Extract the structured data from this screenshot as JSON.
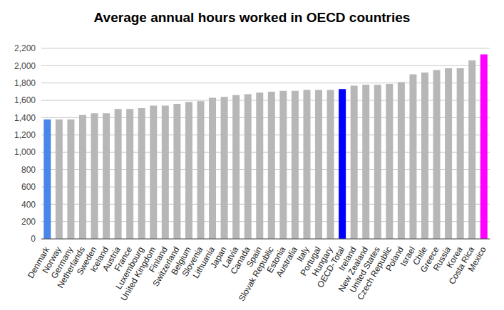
{
  "chart_data": {
    "type": "bar",
    "title": "Average annual hours worked in OECD countries",
    "categories": [
      "Denmark",
      "Norway",
      "Germany",
      "Netherlands",
      "Sweden",
      "Iceland",
      "Austria",
      "France",
      "Luxembourg",
      "United Kingdom",
      "Finland",
      "Switzerland",
      "Belgium",
      "Slovenia",
      "Lithuania",
      "Japan",
      "Latvia",
      "Canada",
      "Spain",
      "Slovak Republic",
      "Estonia",
      "Australia",
      "Italy",
      "Portugal",
      "Hungary",
      "OECD-Total",
      "Ireland",
      "New Zealand",
      "United States",
      "Czech Republic",
      "Poland",
      "Israel",
      "Chile",
      "Greece",
      "Russia",
      "Korea",
      "Costa Rica",
      "Mexico"
    ],
    "values": [
      1380,
      1380,
      1380,
      1430,
      1450,
      1450,
      1500,
      1500,
      1510,
      1540,
      1540,
      1560,
      1580,
      1590,
      1630,
      1640,
      1660,
      1670,
      1690,
      1700,
      1710,
      1710,
      1720,
      1720,
      1720,
      1730,
      1770,
      1780,
      1780,
      1790,
      1810,
      1900,
      1920,
      1950,
      1970,
      1970,
      2060,
      2130
    ],
    "colors": [
      "#4a86e8",
      "#b7b7b7",
      "#b7b7b7",
      "#b7b7b7",
      "#b7b7b7",
      "#b7b7b7",
      "#b7b7b7",
      "#b7b7b7",
      "#b7b7b7",
      "#b7b7b7",
      "#b7b7b7",
      "#b7b7b7",
      "#b7b7b7",
      "#b7b7b7",
      "#b7b7b7",
      "#b7b7b7",
      "#b7b7b7",
      "#b7b7b7",
      "#b7b7b7",
      "#b7b7b7",
      "#b7b7b7",
      "#b7b7b7",
      "#b7b7b7",
      "#b7b7b7",
      "#b7b7b7",
      "#0000ff",
      "#b7b7b7",
      "#b7b7b7",
      "#b7b7b7",
      "#b7b7b7",
      "#b7b7b7",
      "#b7b7b7",
      "#b7b7b7",
      "#b7b7b7",
      "#b7b7b7",
      "#b7b7b7",
      "#b7b7b7",
      "#ff00ff"
    ],
    "ylim": [
      0,
      2200
    ],
    "yticks": [
      0,
      200,
      400,
      600,
      800,
      {
        "value": 1000,
        "label": "1,000"
      },
      {
        "value": 1200,
        "label": "1,200"
      },
      {
        "value": 1400,
        "label": "1,400"
      },
      {
        "value": 1600,
        "label": "1,600"
      },
      {
        "value": 1800,
        "label": "1,800"
      },
      {
        "value": 2000,
        "label": "2,000"
      },
      {
        "value": 2200,
        "label": "2,200"
      }
    ],
    "grid": true
  }
}
